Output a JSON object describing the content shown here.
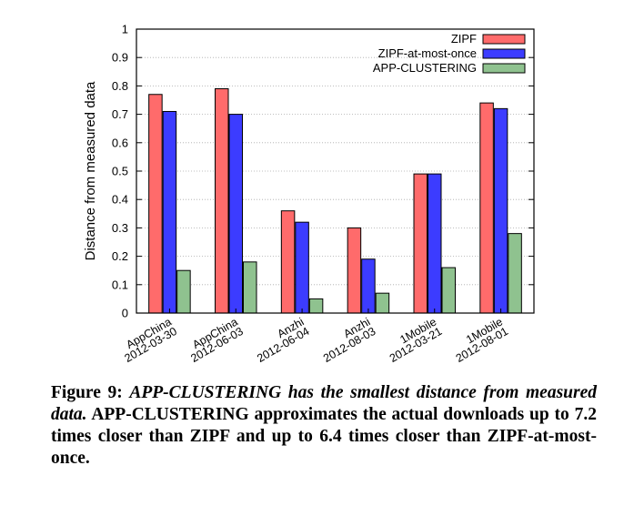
{
  "chart_data": {
    "type": "bar",
    "ylabel": "Distance from measured data",
    "xlabel": "",
    "ylim": [
      0,
      1
    ],
    "yticks": [
      "0",
      "0.1",
      "0.2",
      "0.3",
      "0.4",
      "0.5",
      "0.6",
      "0.7",
      "0.8",
      "0.9",
      "1"
    ],
    "grid": true,
    "legend_position": "top-right",
    "categories": [
      [
        "AppChina",
        "2012-03-30"
      ],
      [
        "AppChina",
        "2012-06-03"
      ],
      [
        "Anzhi",
        "2012-06-04"
      ],
      [
        "Anzhi",
        "2012-08-03"
      ],
      [
        "1Mobile",
        "2012-03-21"
      ],
      [
        "1Mobile",
        "2012-08-01"
      ]
    ],
    "series": [
      {
        "name": "ZIPF",
        "color": "#ff6b6b",
        "values": [
          0.77,
          0.79,
          0.36,
          0.3,
          0.49,
          0.74
        ]
      },
      {
        "name": "ZIPF-at-most-once",
        "color": "#3c3cff",
        "values": [
          0.71,
          0.7,
          0.32,
          0.19,
          0.49,
          0.72
        ]
      },
      {
        "name": "APP-CLUSTERING",
        "color": "#8fc28f",
        "values": [
          0.15,
          0.18,
          0.05,
          0.07,
          0.16,
          0.28
        ]
      }
    ]
  },
  "caption": {
    "label": "Figure 9:",
    "italic": "APP-CLUSTERING has the smallest distance from measured data.",
    "body": "APP-CLUSTERING approximates the actual downloads up to 7.2 times closer than ZIPF and up to 6.4 times closer than ZIPF-at-most-once."
  }
}
